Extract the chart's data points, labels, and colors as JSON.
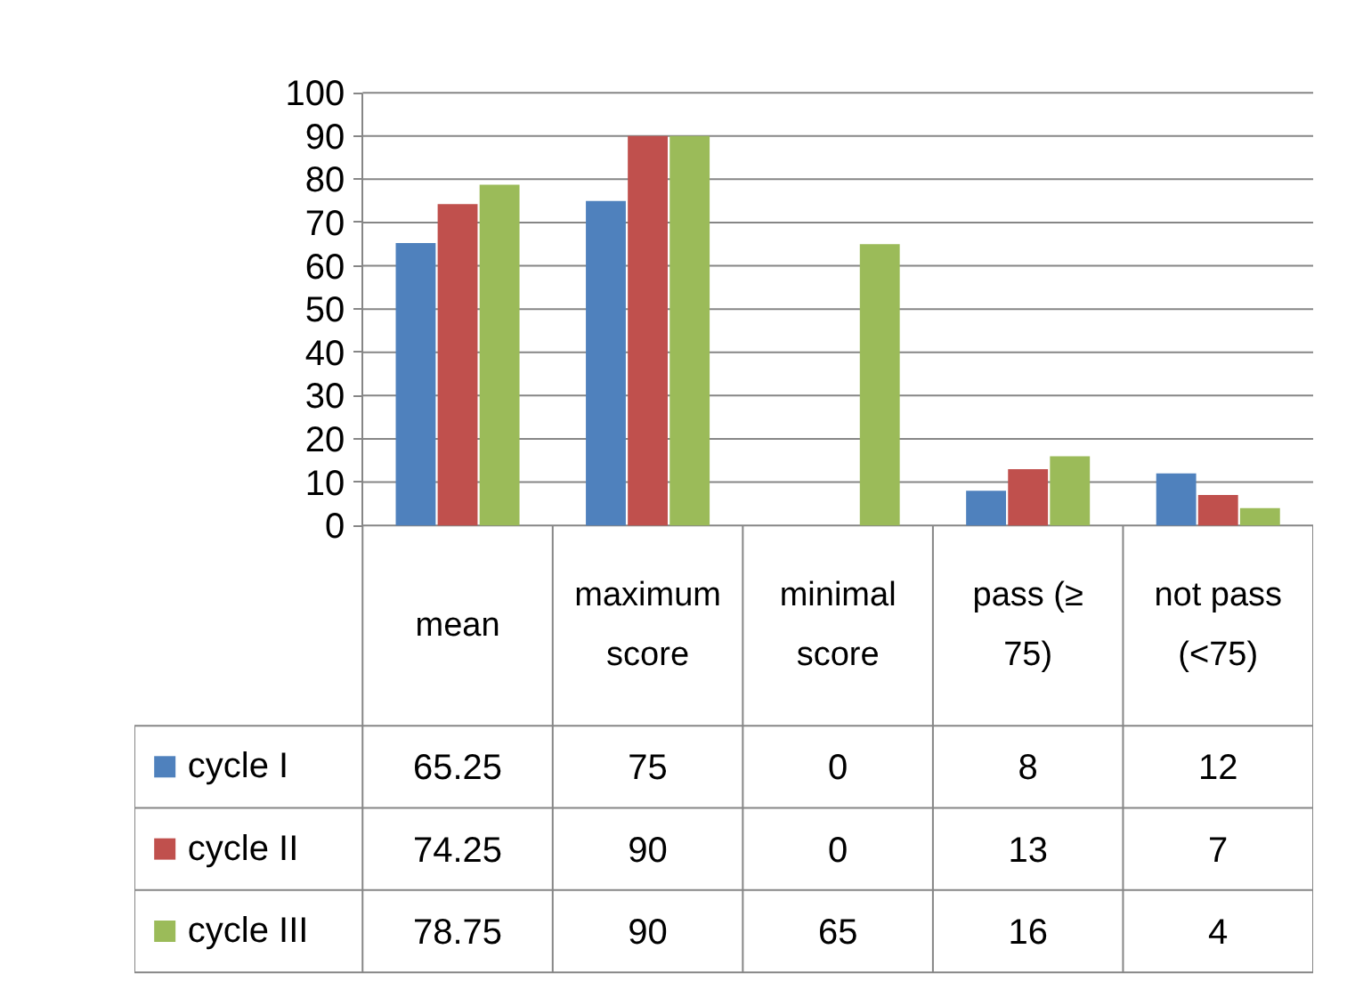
{
  "chart_data": {
    "type": "bar",
    "categories": [
      "mean",
      "maximum score",
      "minimal score",
      "pass (≥ 75)",
      "not pass (<75)"
    ],
    "series": [
      {
        "name": "cycle I",
        "color": "#4f81bd",
        "values": [
          65.25,
          75,
          0,
          8,
          12
        ]
      },
      {
        "name": "cycle II",
        "color": "#c0504d",
        "values": [
          74.25,
          90,
          0,
          13,
          7
        ]
      },
      {
        "name": "cycle III",
        "color": "#9bbb59",
        "values": [
          78.75,
          90,
          65,
          16,
          4
        ]
      }
    ],
    "ylim": [
      0,
      100
    ],
    "yticks": [
      0,
      10,
      20,
      30,
      40,
      50,
      60,
      70,
      80,
      90,
      100
    ],
    "grid": "y",
    "legend": "bottom left",
    "data_labels": true
  }
}
